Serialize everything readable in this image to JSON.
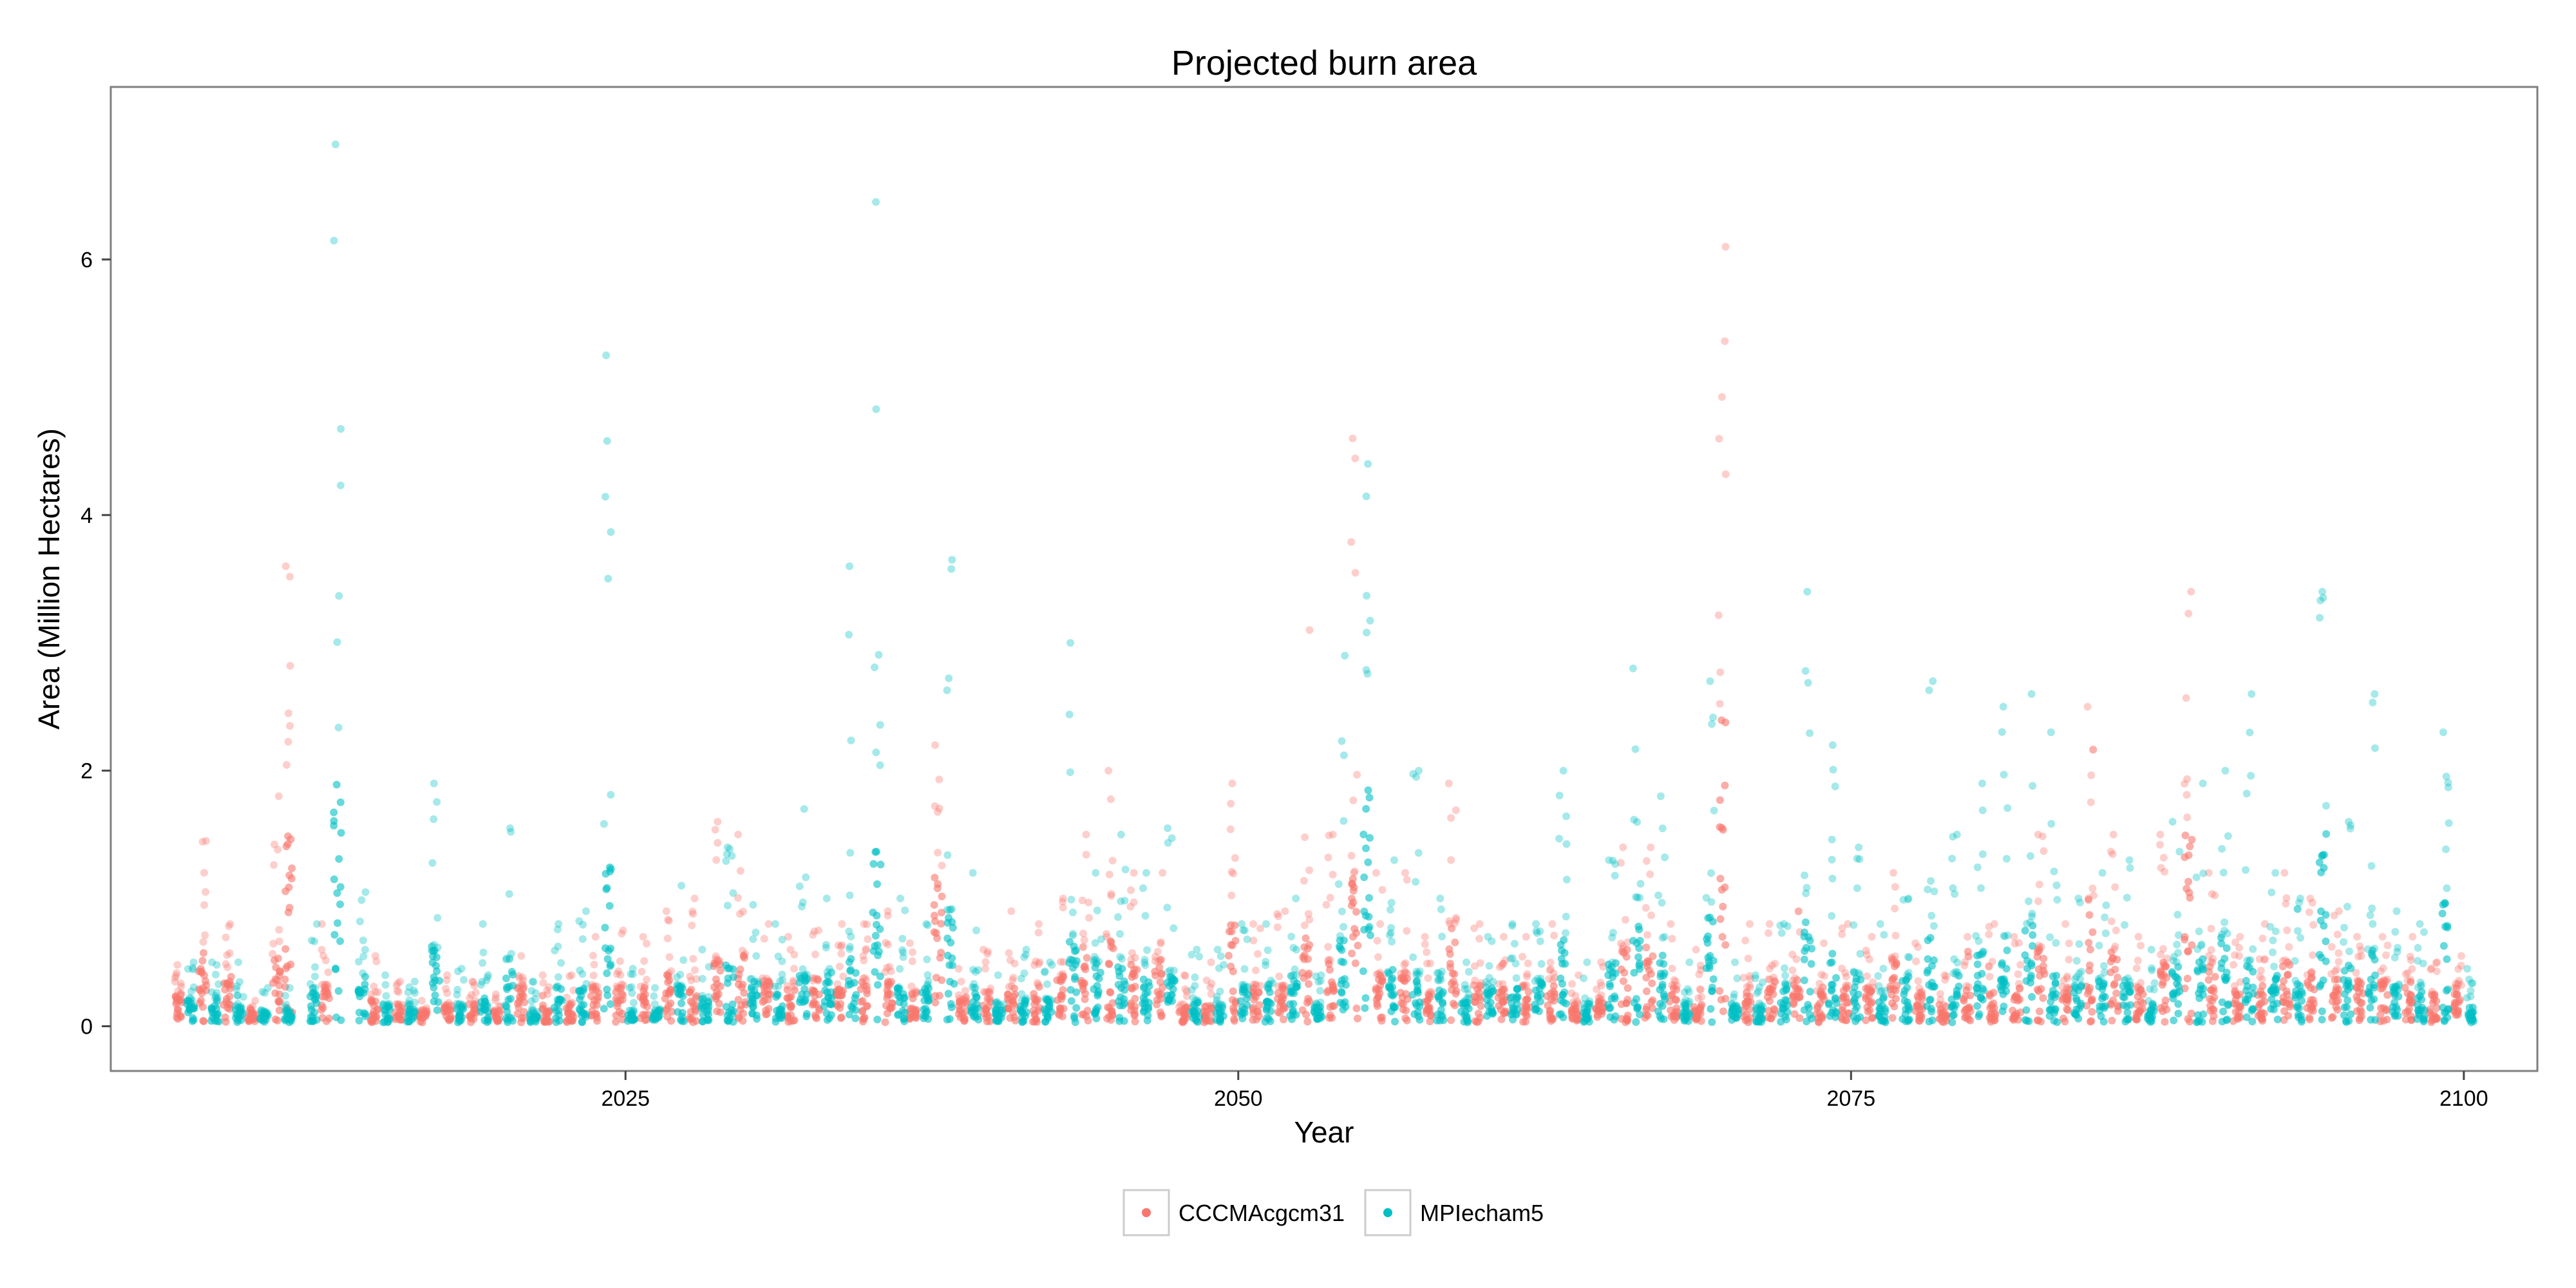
{
  "chart_data": {
    "type": "scatter",
    "title": "Projected burn area",
    "xlabel": "Year",
    "ylabel": "Area (Million Hectares)",
    "xlim": [
      2004,
      2103
    ],
    "ylim": [
      -0.35,
      7.35
    ],
    "xticks": [
      2025,
      2050,
      2075,
      2100
    ],
    "yticks": [
      0,
      2,
      4,
      6
    ],
    "grid": false,
    "legend": "bottom",
    "series": [
      {
        "name": "CCCMAcgcm31",
        "color": "#F8766D",
        "offset": -0.25,
        "points": [
          [
            2007,
            0.25,
            0.48
          ],
          [
            2008,
            0.6,
            1.45
          ],
          [
            2009,
            0.45,
            0.8
          ],
          [
            2010,
            0.1,
            0.2
          ],
          [
            2011,
            0.55,
            1.8
          ],
          [
            2011.5,
            1.8,
            3.6
          ],
          [
            2013,
            0.3,
            0.8
          ],
          [
            2015,
            0.2,
            0.55
          ],
          [
            2016,
            0.15,
            0.35
          ],
          [
            2017,
            0.1,
            0.2
          ],
          [
            2018,
            0.15,
            0.4
          ],
          [
            2019,
            0.15,
            0.35
          ],
          [
            2020,
            0.1,
            0.25
          ],
          [
            2021,
            0.3,
            0.55
          ],
          [
            2022,
            0.15,
            0.4
          ],
          [
            2023,
            0.15,
            0.4
          ],
          [
            2024,
            0.3,
            0.7
          ],
          [
            2025,
            0.3,
            0.75
          ],
          [
            2026,
            0.3,
            0.7
          ],
          [
            2027,
            0.4,
            0.9
          ],
          [
            2028,
            0.35,
            1.0
          ],
          [
            2029,
            0.5,
            1.6
          ],
          [
            2030,
            0.55,
            1.5
          ],
          [
            2031,
            0.35,
            0.8
          ],
          [
            2032,
            0.3,
            0.7
          ],
          [
            2033,
            0.35,
            0.75
          ],
          [
            2034,
            0.3,
            0.8
          ],
          [
            2035,
            0.35,
            0.8
          ],
          [
            2036,
            0.4,
            0.9
          ],
          [
            2037,
            0.25,
            0.65
          ],
          [
            2038,
            1.2,
            2.2
          ],
          [
            2039,
            0.2,
            0.45
          ],
          [
            2040,
            0.25,
            0.6
          ],
          [
            2041,
            0.3,
            0.9
          ],
          [
            2042,
            0.3,
            0.8
          ],
          [
            2043,
            0.4,
            1.0
          ],
          [
            2044,
            0.6,
            1.5
          ],
          [
            2045,
            0.7,
            2.0
          ],
          [
            2046,
            0.5,
            1.2
          ],
          [
            2047,
            0.5,
            1.2
          ],
          [
            2048,
            0.15,
            0.4
          ],
          [
            2049,
            0.15,
            0.5
          ],
          [
            2050,
            0.8,
            1.9
          ],
          [
            2051,
            0.3,
            0.8
          ],
          [
            2052,
            0.3,
            0.9
          ],
          [
            2053,
            0.7,
            3.1
          ],
          [
            2054,
            0.5,
            1.5
          ],
          [
            2055,
            1.2,
            4.6
          ],
          [
            2056,
            0.4,
            1.2
          ],
          [
            2057,
            0.4,
            1.2
          ],
          [
            2058,
            0.25,
            0.7
          ],
          [
            2059,
            0.8,
            1.9
          ],
          [
            2060,
            0.3,
            0.8
          ],
          [
            2061,
            0.3,
            0.7
          ],
          [
            2062,
            0.3,
            0.7
          ],
          [
            2063,
            0.35,
            0.8
          ],
          [
            2064,
            0.15,
            0.4
          ],
          [
            2065,
            0.2,
            0.5
          ],
          [
            2066,
            0.6,
            1.4
          ],
          [
            2067,
            0.6,
            1.4
          ],
          [
            2068,
            0.3,
            0.8
          ],
          [
            2069,
            0.2,
            0.6
          ],
          [
            2070,
            2.5,
            6.1
          ],
          [
            2071,
            0.3,
            0.8
          ],
          [
            2072,
            0.35,
            0.8
          ],
          [
            2073,
            0.35,
            0.9
          ],
          [
            2074,
            0.25,
            0.65
          ],
          [
            2075,
            0.3,
            0.8
          ],
          [
            2076,
            0.3,
            0.7
          ],
          [
            2077,
            0.5,
            1.2
          ],
          [
            2078,
            0.25,
            0.65
          ],
          [
            2079,
            0.15,
            0.4
          ],
          [
            2080,
            0.3,
            0.7
          ],
          [
            2081,
            0.3,
            0.8
          ],
          [
            2082,
            0.3,
            0.7
          ],
          [
            2083,
            0.6,
            1.5
          ],
          [
            2084,
            0.3,
            0.8
          ],
          [
            2085,
            1.0,
            2.5
          ],
          [
            2086,
            0.6,
            1.5
          ],
          [
            2087,
            0.3,
            0.7
          ],
          [
            2088,
            0.5,
            1.5
          ],
          [
            2089,
            1.5,
            3.4
          ],
          [
            2090,
            0.5,
            1.2
          ],
          [
            2091,
            0.3,
            0.7
          ],
          [
            2092,
            0.35,
            0.8
          ],
          [
            2093,
            0.5,
            1.2
          ],
          [
            2094,
            0.4,
            1.0
          ],
          [
            2095,
            0.4,
            0.9
          ],
          [
            2096,
            0.35,
            0.7
          ],
          [
            2097,
            0.35,
            0.7
          ],
          [
            2098,
            0.35,
            0.7
          ],
          [
            2099,
            0.25,
            0.5
          ],
          [
            2100,
            0.3,
            0.55
          ]
        ]
      },
      {
        "name": "MPIecham5",
        "color": "#00BFC4",
        "offset": 0.25,
        "points": [
          [
            2007,
            0.2,
            0.5
          ],
          [
            2008,
            0.2,
            0.5
          ],
          [
            2009,
            0.15,
            0.5
          ],
          [
            2010,
            0.1,
            0.3
          ],
          [
            2011,
            0.1,
            0.3
          ],
          [
            2012,
            0.3,
            0.8
          ],
          [
            2013,
            2.0,
            6.9
          ],
          [
            2014,
            0.4,
            1.05
          ],
          [
            2015,
            0.15,
            0.4
          ],
          [
            2016,
            0.15,
            0.35
          ],
          [
            2017,
            0.6,
            1.9
          ],
          [
            2018,
            0.15,
            0.45
          ],
          [
            2019,
            0.3,
            0.8
          ],
          [
            2020,
            0.5,
            1.55
          ],
          [
            2021,
            0.1,
            0.35
          ],
          [
            2022,
            0.3,
            0.8
          ],
          [
            2023,
            0.3,
            0.9
          ],
          [
            2024,
            1.3,
            5.25
          ],
          [
            2025,
            0.1,
            0.45
          ],
          [
            2026,
            0.1,
            0.3
          ],
          [
            2027,
            0.3,
            1.1
          ],
          [
            2028,
            0.2,
            0.6
          ],
          [
            2029,
            0.5,
            1.4
          ],
          [
            2030,
            0.35,
            0.95
          ],
          [
            2031,
            0.3,
            0.8
          ],
          [
            2032,
            0.4,
            1.7
          ],
          [
            2033,
            0.4,
            1.0
          ],
          [
            2034,
            0.6,
            3.6
          ],
          [
            2035,
            1.5,
            6.45
          ],
          [
            2036,
            0.3,
            1.0
          ],
          [
            2037,
            0.3,
            0.8
          ],
          [
            2038,
            0.9,
            3.65
          ],
          [
            2039,
            0.3,
            1.2
          ],
          [
            2040,
            0.15,
            0.4
          ],
          [
            2041,
            0.2,
            0.6
          ],
          [
            2042,
            0.2,
            0.5
          ],
          [
            2043,
            0.7,
            3.0
          ],
          [
            2044,
            0.5,
            1.2
          ],
          [
            2045,
            0.5,
            1.5
          ],
          [
            2046,
            0.4,
            1.2
          ],
          [
            2047,
            0.4,
            1.55
          ],
          [
            2048,
            0.2,
            0.6
          ],
          [
            2049,
            0.15,
            0.6
          ],
          [
            2050,
            0.3,
            0.8
          ],
          [
            2051,
            0.3,
            0.8
          ],
          [
            2052,
            0.4,
            1.0
          ],
          [
            2053,
            0.15,
            0.4
          ],
          [
            2054,
            0.7,
            2.9
          ],
          [
            2055,
            1.9,
            4.4
          ],
          [
            2056,
            0.5,
            1.3
          ],
          [
            2057,
            0.4,
            2.0
          ],
          [
            2058,
            0.35,
            1.0
          ],
          [
            2059,
            0.2,
            0.5
          ],
          [
            2060,
            0.3,
            0.7
          ],
          [
            2061,
            0.3,
            0.8
          ],
          [
            2062,
            0.35,
            0.8
          ],
          [
            2063,
            0.7,
            2.0
          ],
          [
            2064,
            0.15,
            0.5
          ],
          [
            2065,
            0.5,
            1.3
          ],
          [
            2066,
            1.0,
            2.8
          ],
          [
            2067,
            0.6,
            1.8
          ],
          [
            2068,
            0.15,
            0.5
          ],
          [
            2069,
            0.9,
            2.7
          ],
          [
            2070,
            0.15,
            0.5
          ],
          [
            2071,
            0.15,
            0.4
          ],
          [
            2072,
            0.3,
            0.8
          ],
          [
            2073,
            0.8,
            3.4
          ],
          [
            2074,
            0.6,
            2.2
          ],
          [
            2075,
            0.4,
            1.4
          ],
          [
            2076,
            0.25,
            0.8
          ],
          [
            2077,
            0.4,
            1.0
          ],
          [
            2078,
            0.7,
            2.7
          ],
          [
            2079,
            0.4,
            1.5
          ],
          [
            2080,
            0.6,
            1.9
          ],
          [
            2081,
            0.7,
            2.5
          ],
          [
            2082,
            0.8,
            2.6
          ],
          [
            2083,
            0.4,
            2.3
          ],
          [
            2084,
            0.35,
            1.0
          ],
          [
            2085,
            0.35,
            1.2
          ],
          [
            2086,
            0.35,
            1.3
          ],
          [
            2087,
            0.15,
            0.6
          ],
          [
            2088,
            0.5,
            1.6
          ],
          [
            2089,
            0.6,
            1.9
          ],
          [
            2090,
            0.7,
            2.0
          ],
          [
            2091,
            0.5,
            2.6
          ],
          [
            2092,
            0.4,
            1.2
          ],
          [
            2093,
            0.35,
            1.0
          ],
          [
            2094,
            1.5,
            3.4
          ],
          [
            2095,
            0.5,
            1.6
          ],
          [
            2096,
            0.6,
            2.6
          ],
          [
            2097,
            0.3,
            0.9
          ],
          [
            2098,
            0.3,
            0.8
          ],
          [
            2099,
            1.0,
            2.3
          ],
          [
            2100,
            0.15,
            0.45
          ]
        ]
      }
    ]
  }
}
